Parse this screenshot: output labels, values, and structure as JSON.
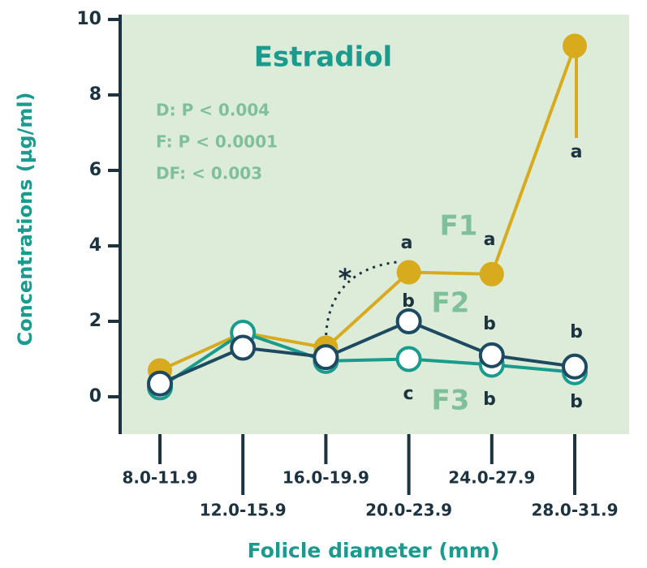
{
  "chart_data": {
    "type": "line",
    "title": "Estradiol",
    "x_label": "Folicle diameter (mm)",
    "y_label": "Concentrations (µg/ml)",
    "categories": [
      "8.0-11.9",
      "12.0-15.9",
      "16.0-19.9",
      "20.0-23.9",
      "24.0-27.9",
      "28.0-31.9"
    ],
    "series": [
      {
        "name": "F1",
        "color": "#d8aa1e",
        "values": [
          0.7,
          1.7,
          1.3,
          3.3,
          3.25,
          9.3
        ]
      },
      {
        "name": "F3",
        "color": "#1b9a8e",
        "values": [
          0.25,
          1.7,
          0.95,
          1.0,
          0.85,
          0.65
        ]
      },
      {
        "name": "F2",
        "color": "#1d4a60",
        "values": [
          0.35,
          1.3,
          1.05,
          2.0,
          1.1,
          0.8
        ]
      }
    ],
    "ylim": [
      -1,
      10
    ],
    "yticks": [
      0,
      2,
      4,
      6,
      8,
      10
    ],
    "stats": [
      "D: P < 0.004",
      "F: P < 0.0001",
      "DF: < 0.003"
    ],
    "letters": [
      "a",
      "a",
      "a",
      "b",
      "b",
      "b",
      "c",
      "b",
      "b"
    ],
    "significance": "*"
  }
}
